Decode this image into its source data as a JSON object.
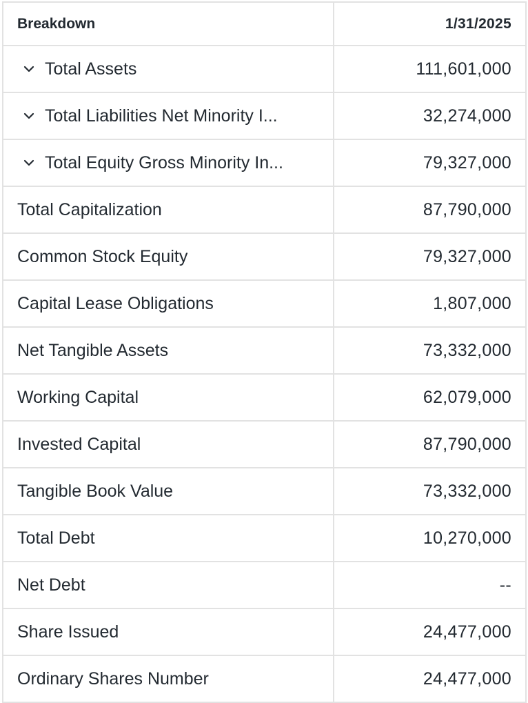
{
  "header": {
    "breakdown_label": "Breakdown",
    "date_label": "1/31/2025"
  },
  "rows": [
    {
      "label": "Total Assets",
      "value": "111,601,000",
      "expandable": true
    },
    {
      "label": "Total Liabilities Net Minority I...",
      "value": "32,274,000",
      "expandable": true
    },
    {
      "label": "Total Equity Gross Minority In...",
      "value": "79,327,000",
      "expandable": true
    },
    {
      "label": "Total Capitalization",
      "value": "87,790,000",
      "expandable": false
    },
    {
      "label": "Common Stock Equity",
      "value": "79,327,000",
      "expandable": false
    },
    {
      "label": "Capital Lease Obligations",
      "value": "1,807,000",
      "expandable": false
    },
    {
      "label": "Net Tangible Assets",
      "value": "73,332,000",
      "expandable": false
    },
    {
      "label": "Working Capital",
      "value": "62,079,000",
      "expandable": false
    },
    {
      "label": "Invested Capital",
      "value": "87,790,000",
      "expandable": false
    },
    {
      "label": "Tangible Book Value",
      "value": "73,332,000",
      "expandable": false
    },
    {
      "label": "Total Debt",
      "value": "10,270,000",
      "expandable": false
    },
    {
      "label": "Net Debt",
      "value": "--",
      "expandable": false
    },
    {
      "label": "Share Issued",
      "value": "24,477,000",
      "expandable": false
    },
    {
      "label": "Ordinary Shares Number",
      "value": "24,477,000",
      "expandable": false
    }
  ],
  "icons": {
    "expand": "chevron-down-icon"
  }
}
